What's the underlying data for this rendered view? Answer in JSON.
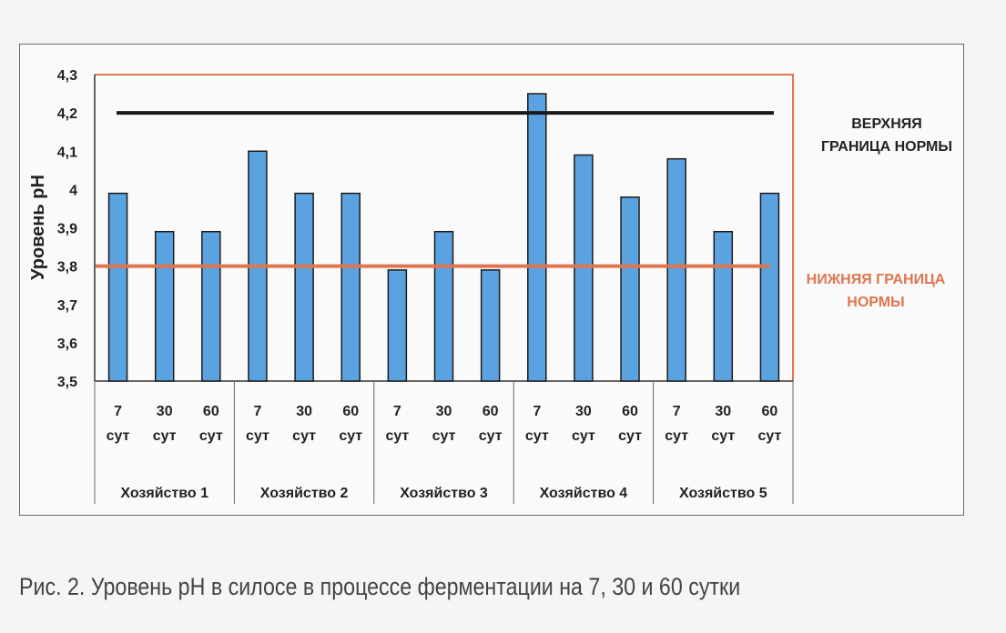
{
  "chart_data": {
    "type": "bar",
    "ylabel": "Уровень pH",
    "ylim": [
      3.5,
      4.3
    ],
    "yticks": [
      "3,5",
      "3,6",
      "3,7",
      "3,8",
      "3,9",
      "4",
      "4,1",
      "4,2",
      "4,3"
    ],
    "yticks_values": [
      3.5,
      3.6,
      3.7,
      3.8,
      3.9,
      4.0,
      4.1,
      4.2,
      4.3
    ],
    "groups": [
      "Хозяйство 1",
      "Хозяйство 2",
      "Хозяйство 3",
      "Хозяйство 4",
      "Хозяйство 5"
    ],
    "categories": [
      {
        "num": "7",
        "unit": "сут"
      },
      {
        "num": "30",
        "unit": "сут"
      },
      {
        "num": "60",
        "unit": "сут"
      },
      {
        "num": "7",
        "unit": "сут"
      },
      {
        "num": "30",
        "unit": "сут"
      },
      {
        "num": "60",
        "unit": "сут"
      },
      {
        "num": "7",
        "unit": "сут"
      },
      {
        "num": "30",
        "unit": "сут"
      },
      {
        "num": "60",
        "unit": "сут"
      },
      {
        "num": "7",
        "unit": "сут"
      },
      {
        "num": "30",
        "unit": "сут"
      },
      {
        "num": "60",
        "unit": "сут"
      },
      {
        "num": "7",
        "unit": "сут"
      },
      {
        "num": "30",
        "unit": "сут"
      },
      {
        "num": "60",
        "unit": "сут"
      }
    ],
    "values": [
      3.99,
      3.89,
      3.89,
      4.1,
      3.99,
      3.99,
      3.79,
      3.89,
      3.79,
      4.25,
      4.09,
      3.98,
      4.08,
      3.89,
      3.99
    ],
    "upper_limit": {
      "value": 4.2,
      "label_lines": [
        "ВЕРХНЯЯ",
        "ГРАНИЦА НОРМЫ"
      ],
      "color": "#1a1a1a"
    },
    "lower_limit": {
      "value": 3.8,
      "label_lines": [
        "НИЖНЯЯ ГРАНИЦА",
        "НОРМЫ"
      ],
      "color": "#e0764e"
    },
    "bar_color": "#5aa3e0",
    "plot_border_color": "#e0764e"
  },
  "caption": "Рис. 2. Уровень pH в силосе в процессе ферментации на 7, 30 и 60 сутки"
}
